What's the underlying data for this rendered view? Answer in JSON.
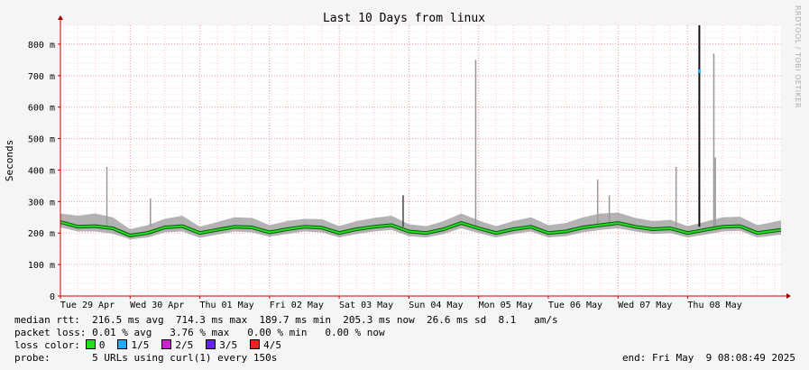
{
  "watermark": "RRDTOOL / TOBI OETIKER",
  "chart_data": {
    "type": "area",
    "title": "Last 10 Days from linux",
    "ylabel": "Seconds",
    "xlabel": "",
    "ylim": [
      0,
      0.86
    ],
    "yticks": [
      {
        "v": 0,
        "label": "0"
      },
      {
        "v": 0.1,
        "label": "100 m"
      },
      {
        "v": 0.2,
        "label": "200 m"
      },
      {
        "v": 0.3,
        "label": "300 m"
      },
      {
        "v": 0.4,
        "label": "400 m"
      },
      {
        "v": 0.5,
        "label": "500 m"
      },
      {
        "v": 0.6,
        "label": "600 m"
      },
      {
        "v": 0.7,
        "label": "700 m"
      },
      {
        "v": 0.8,
        "label": "800 m"
      }
    ],
    "xlim": [
      "2025-04-29T00:00",
      "2025-05-09T08:08"
    ],
    "xticks": [
      {
        "t": "2025-04-29T00:00",
        "label": "Tue 29 Apr"
      },
      {
        "t": "2025-04-30T00:00",
        "label": "Wed 30 Apr"
      },
      {
        "t": "2025-05-01T00:00",
        "label": "Thu 01 May"
      },
      {
        "t": "2025-05-02T00:00",
        "label": "Fri 02 May"
      },
      {
        "t": "2025-05-03T00:00",
        "label": "Sat 03 May"
      },
      {
        "t": "2025-05-04T00:00",
        "label": "Sun 04 May"
      },
      {
        "t": "2025-05-05T00:00",
        "label": "Mon 05 May"
      },
      {
        "t": "2025-05-06T00:00",
        "label": "Tue 06 May"
      },
      {
        "t": "2025-05-07T00:00",
        "label": "Wed 07 May"
      },
      {
        "t": "2025-05-08T00:00",
        "label": "Thu 08 May"
      }
    ],
    "grid": true,
    "series": [
      {
        "name": "median rtt",
        "color": "#22dd22",
        "x": [
          "2025-04-29T00:00",
          "2025-04-29T06:00",
          "2025-04-29T12:00",
          "2025-04-29T18:00",
          "2025-04-30T00:00",
          "2025-04-30T06:00",
          "2025-04-30T12:00",
          "2025-04-30T18:00",
          "2025-05-01T00:00",
          "2025-05-01T06:00",
          "2025-05-01T12:00",
          "2025-05-01T18:00",
          "2025-05-02T00:00",
          "2025-05-02T06:00",
          "2025-05-02T12:00",
          "2025-05-02T18:00",
          "2025-05-03T00:00",
          "2025-05-03T06:00",
          "2025-05-03T12:00",
          "2025-05-03T18:00",
          "2025-05-04T00:00",
          "2025-05-04T06:00",
          "2025-05-04T12:00",
          "2025-05-04T18:00",
          "2025-05-05T00:00",
          "2025-05-05T06:00",
          "2025-05-05T12:00",
          "2025-05-05T18:00",
          "2025-05-06T00:00",
          "2025-05-06T06:00",
          "2025-05-06T12:00",
          "2025-05-06T18:00",
          "2025-05-07T00:00",
          "2025-05-07T06:00",
          "2025-05-07T12:00",
          "2025-05-07T18:00",
          "2025-05-08T00:00",
          "2025-05-08T06:00",
          "2025-05-08T12:00",
          "2025-05-08T18:00",
          "2025-05-09T00:00",
          "2025-05-09T08:08"
        ],
        "values": [
          0.235,
          0.22,
          0.222,
          0.215,
          0.192,
          0.2,
          0.218,
          0.222,
          0.2,
          0.21,
          0.22,
          0.218,
          0.202,
          0.212,
          0.22,
          0.217,
          0.2,
          0.212,
          0.22,
          0.225,
          0.205,
          0.2,
          0.212,
          0.232,
          0.215,
          0.2,
          0.212,
          0.22,
          0.2,
          0.205,
          0.218,
          0.225,
          0.232,
          0.22,
          0.212,
          0.215,
          0.2,
          0.21,
          0.22,
          0.222,
          0.2,
          0.21
        ]
      },
      {
        "name": "rtt spread upper",
        "color": "#999999",
        "x": [
          "2025-04-29T00:00",
          "2025-04-29T06:00",
          "2025-04-29T12:00",
          "2025-04-29T18:00",
          "2025-04-30T00:00",
          "2025-04-30T06:00",
          "2025-04-30T12:00",
          "2025-04-30T18:00",
          "2025-05-01T00:00",
          "2025-05-01T06:00",
          "2025-05-01T12:00",
          "2025-05-01T18:00",
          "2025-05-02T00:00",
          "2025-05-02T06:00",
          "2025-05-02T12:00",
          "2025-05-02T18:00",
          "2025-05-03T00:00",
          "2025-05-03T06:00",
          "2025-05-03T12:00",
          "2025-05-03T18:00",
          "2025-05-04T00:00",
          "2025-05-04T06:00",
          "2025-05-04T12:00",
          "2025-05-04T18:00",
          "2025-05-05T00:00",
          "2025-05-05T06:00",
          "2025-05-05T12:00",
          "2025-05-05T18:00",
          "2025-05-06T00:00",
          "2025-05-06T06:00",
          "2025-05-06T12:00",
          "2025-05-06T18:00",
          "2025-05-07T00:00",
          "2025-05-07T06:00",
          "2025-05-07T12:00",
          "2025-05-07T18:00",
          "2025-05-08T00:00",
          "2025-05-08T06:00",
          "2025-05-08T12:00",
          "2025-05-08T18:00",
          "2025-05-09T00:00",
          "2025-05-09T08:08"
        ],
        "values": [
          0.262,
          0.255,
          0.262,
          0.25,
          0.212,
          0.225,
          0.245,
          0.255,
          0.22,
          0.235,
          0.25,
          0.248,
          0.225,
          0.238,
          0.245,
          0.244,
          0.222,
          0.238,
          0.248,
          0.255,
          0.228,
          0.222,
          0.238,
          0.262,
          0.24,
          0.222,
          0.238,
          0.25,
          0.225,
          0.232,
          0.25,
          0.262,
          0.265,
          0.248,
          0.238,
          0.242,
          0.222,
          0.236,
          0.25,
          0.252,
          0.225,
          0.24
        ]
      },
      {
        "name": "rtt spread lower",
        "color": "#999999",
        "x": [
          "2025-04-29T00:00",
          "2025-04-29T06:00",
          "2025-04-29T12:00",
          "2025-04-29T18:00",
          "2025-04-30T00:00",
          "2025-04-30T06:00",
          "2025-04-30T12:00",
          "2025-04-30T18:00",
          "2025-05-01T00:00",
          "2025-05-01T06:00",
          "2025-05-01T12:00",
          "2025-05-01T18:00",
          "2025-05-02T00:00",
          "2025-05-02T06:00",
          "2025-05-02T12:00",
          "2025-05-02T18:00",
          "2025-05-03T00:00",
          "2025-05-03T06:00",
          "2025-05-03T12:00",
          "2025-05-03T18:00",
          "2025-05-04T00:00",
          "2025-05-04T06:00",
          "2025-05-04T12:00",
          "2025-05-04T18:00",
          "2025-05-05T00:00",
          "2025-05-05T06:00",
          "2025-05-05T12:00",
          "2025-05-05T18:00",
          "2025-05-06T00:00",
          "2025-05-06T06:00",
          "2025-05-06T12:00",
          "2025-05-06T18:00",
          "2025-05-07T00:00",
          "2025-05-07T06:00",
          "2025-05-07T12:00",
          "2025-05-07T18:00",
          "2025-05-08T00:00",
          "2025-05-08T06:00",
          "2025-05-08T12:00",
          "2025-05-08T18:00",
          "2025-05-09T00:00",
          "2025-05-09T08:08"
        ],
        "values": [
          0.218,
          0.205,
          0.205,
          0.198,
          0.18,
          0.186,
          0.202,
          0.205,
          0.185,
          0.195,
          0.205,
          0.202,
          0.188,
          0.197,
          0.205,
          0.202,
          0.186,
          0.197,
          0.205,
          0.21,
          0.19,
          0.186,
          0.197,
          0.215,
          0.2,
          0.186,
          0.197,
          0.205,
          0.186,
          0.19,
          0.202,
          0.21,
          0.215,
          0.205,
          0.197,
          0.2,
          0.186,
          0.195,
          0.205,
          0.207,
          0.186,
          0.195
        ]
      }
    ],
    "spikes": [
      {
        "t": "2025-04-29T16:00",
        "value": 0.41,
        "color": "#999999"
      },
      {
        "t": "2025-04-30T07:00",
        "value": 0.31,
        "color": "#999999"
      },
      {
        "t": "2025-05-03T22:00",
        "value": 0.32,
        "color": "#444444"
      },
      {
        "t": "2025-05-04T23:00",
        "value": 0.75,
        "color": "#999999"
      },
      {
        "t": "2025-05-06T17:00",
        "value": 0.37,
        "color": "#999999"
      },
      {
        "t": "2025-05-06T21:00",
        "value": 0.32,
        "color": "#999999"
      },
      {
        "t": "2025-05-07T20:00",
        "value": 0.41,
        "color": "#999999"
      },
      {
        "t": "2025-05-08T04:00",
        "value": 0.86,
        "color": "#111111"
      },
      {
        "t": "2025-05-08T09:00",
        "value": 0.77,
        "color": "#999999"
      },
      {
        "t": "2025-05-08T09:30",
        "value": 0.44,
        "color": "#999999"
      }
    ],
    "loss_marker": {
      "t": "2025-05-08T04:00",
      "value": 0.714,
      "color": "#22aaff"
    }
  },
  "legend": {
    "rtt_label": "median rtt:",
    "rtt_values": "  216.5 ms avg  714.3 ms max  189.7 ms min  205.3 ms now  26.6 ms sd  8.1   am/s",
    "loss_label": "packet loss:",
    "loss_values": " 0.01 % avg   3.76 % max   0.00 % min   0.00 % now",
    "color_label": "loss color:",
    "colors": [
      {
        "label": "0",
        "color": "#22dd22"
      },
      {
        "label": "1/5",
        "color": "#22aaff"
      },
      {
        "label": "2/5",
        "color": "#cc22cc"
      },
      {
        "label": "3/5",
        "color": "#6622ee"
      },
      {
        "label": "4/5",
        "color": "#ee2222"
      }
    ],
    "probe_label": "probe:",
    "probe_values": "       5 URLs using curl(1) every 150s",
    "end_label": "end: Fri May  9 08:08:49 2025"
  }
}
